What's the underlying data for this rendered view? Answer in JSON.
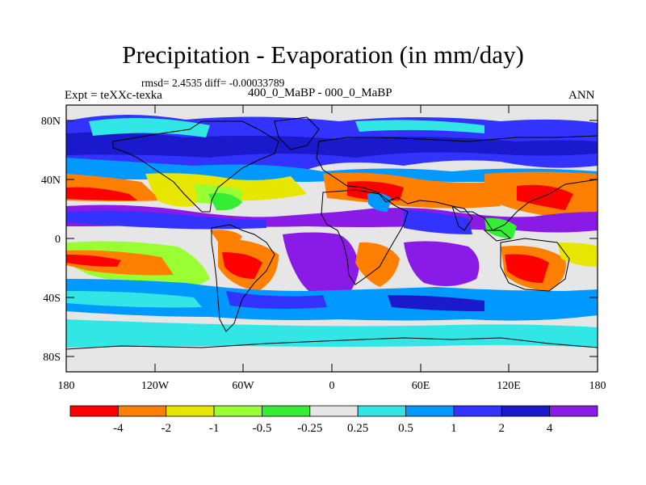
{
  "title": "Precipitation - Evaporation (in mm/day)",
  "stats": "rmsd= 2.4535 diff= -0.00033789",
  "experiment": "Expt = teXXc-texka",
  "period": "400_0_MaBP - 000_0_MaBP",
  "season": "ANN",
  "y_axis_labels": [
    "80N",
    "40N",
    "0",
    "40S",
    "80S"
  ],
  "x_axis_labels": [
    "180",
    "120W",
    "60W",
    "0",
    "60E",
    "120E",
    "180"
  ],
  "colorbar": {
    "colors": [
      "#ff0000",
      "#ff7f00",
      "#e6e600",
      "#99ff33",
      "#33ee33",
      "#e6e6e6",
      "#33e6e6",
      "#0099ff",
      "#3333ff",
      "#1a1acc",
      "#8a1ae6"
    ],
    "labels": [
      "-4",
      "-2",
      "-1",
      "-0.5",
      "-0.25",
      "0.25",
      "0.5",
      "1",
      "2",
      "4"
    ]
  }
}
